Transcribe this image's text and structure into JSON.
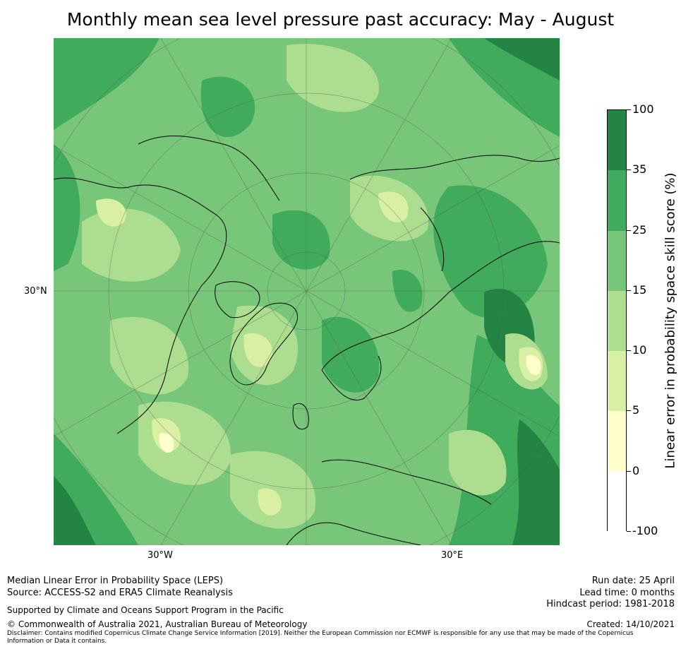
{
  "title": "Monthly mean sea level pressure past accuracy: May - August",
  "map": {
    "lat_labels": [
      "30°N"
    ],
    "lon_labels": [
      "30°W",
      "30°E"
    ]
  },
  "colorbar": {
    "label": "Linear error in probability space skill score (%)",
    "ticks": [
      "100",
      "35",
      "25",
      "15",
      "10",
      "5",
      "0",
      "-100"
    ],
    "bins": [
      {
        "range": "35 to 100",
        "color": "#238443"
      },
      {
        "range": "25 to 35",
        "color": "#41ab5d"
      },
      {
        "range": "15 to 25",
        "color": "#78c679"
      },
      {
        "range": "10 to 15",
        "color": "#addd8e"
      },
      {
        "range": "5 to 10",
        "color": "#d9f0a3"
      },
      {
        "range": "0 to 5",
        "color": "#ffffcc"
      },
      {
        "range": "-100 to 0",
        "color": "#ffffff"
      }
    ]
  },
  "footer": {
    "line1": "Median Linear Error in Probability Space (LEPS)",
    "line2": "Source: ACCESS-S2 and ERA5 Climate Reanalysis",
    "line3": "Supported by Climate and Oceans Support Program in the Pacific",
    "line4": "© Commonwealth of Australia 2021, Australian Bureau of Meteorology",
    "disclaimer1": "Disclaimer: Contains modified Copernicus Climate Change Service Information [2019]. Neither the European Commission nor ECMWF is responsible for any use that may be made of the Copernicus",
    "disclaimer2": "Information or Data it contains.",
    "run_date": "Run date: 25 April",
    "lead_time": "Lead time: 0 months",
    "hindcast": "Hindcast period: 1981-2018",
    "created": "Created: 14/10/2021"
  }
}
